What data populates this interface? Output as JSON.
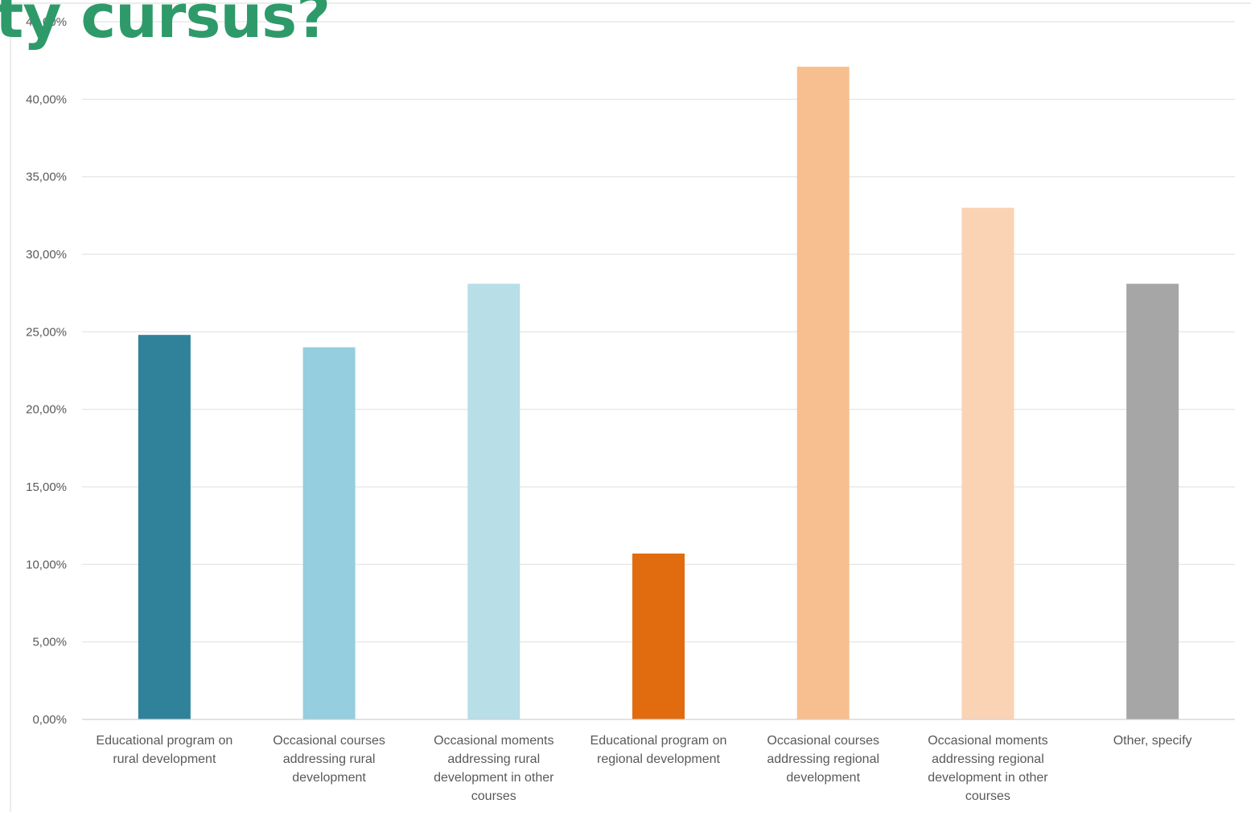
{
  "header": {
    "title_fragment": "ty cursus?",
    "title_color": "#2e9a6a"
  },
  "chart_data": {
    "type": "bar",
    "categories": [
      "Educational program on rural development",
      "Occasional courses addressing rural development",
      "Occasional moments addressing rural development in other courses",
      "Educational program on regional development",
      "Occasional courses addressing regional development",
      "Occasional moments addressing regional development in other courses",
      "Other, specify"
    ],
    "category_label_lines": [
      [
        "Educational program on",
        "rural development"
      ],
      [
        "Occasional courses",
        "addressing rural",
        "development"
      ],
      [
        "Occasional moments",
        "addressing rural",
        "development in other",
        "courses"
      ],
      [
        "Educational program on",
        "regional development"
      ],
      [
        "Occasional courses",
        "addressing regional",
        "development"
      ],
      [
        "Occasional moments",
        "addressing regional",
        "development in other",
        "courses"
      ],
      [
        "Other, specify"
      ]
    ],
    "values": [
      24.8,
      24.0,
      28.1,
      10.7,
      42.1,
      33.0,
      28.1
    ],
    "colors": [
      "#2f8299",
      "#95cede",
      "#b8dee7",
      "#e06c0f",
      "#f7bf8f",
      "#fad3b4",
      "#a6a6a6"
    ],
    "y_tick_labels": [
      "0,00%",
      "5,00%",
      "10,00%",
      "15,00%",
      "20,00%",
      "25,00%",
      "30,00%",
      "35,00%",
      "40,00%",
      "45,00%"
    ],
    "ylim": [
      0,
      45
    ],
    "ytick_step": 5,
    "grid": true,
    "title": "",
    "xlabel": "",
    "ylabel": ""
  }
}
